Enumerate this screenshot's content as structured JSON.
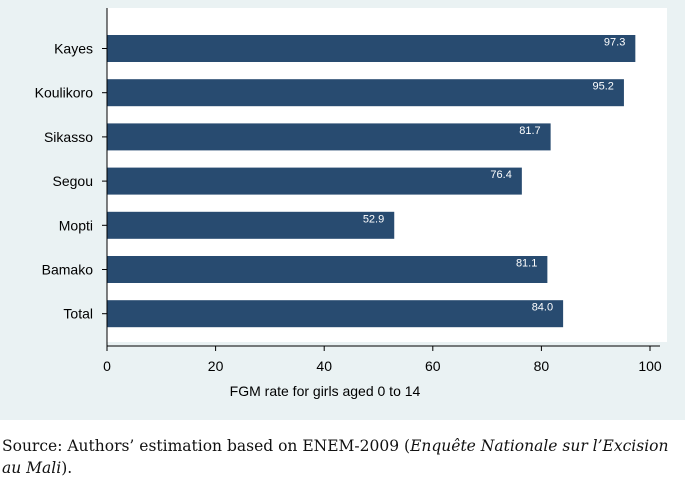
{
  "chart_data": {
    "type": "bar",
    "orientation": "horizontal",
    "categories": [
      "Kayes",
      "Koulikoro",
      "Sikasso",
      "Segou",
      "Mopti",
      "Bamako",
      "Total"
    ],
    "values": [
      97.3,
      95.2,
      81.7,
      76.4,
      52.9,
      81.1,
      84.0
    ],
    "value_labels": [
      "97.3",
      "95.2",
      "81.7",
      "76.4",
      "52.9",
      "81.1",
      "84.0"
    ],
    "xlabel": "FGM rate for girls aged 0 to 14",
    "ylabel": "",
    "xlim": [
      0,
      100
    ],
    "xticks": [
      0,
      20,
      40,
      60,
      80,
      100
    ],
    "grid": false,
    "colors": {
      "bar": "#284b70",
      "plot_background": "#ffffff",
      "figure_background": "#eaf2f3"
    }
  },
  "caption": {
    "prefix": "Source: Authors’ estimation based on ENEM-2009 (",
    "italic": "Enquête Nationale sur l’Excision au Mali",
    "suffix": ")."
  }
}
